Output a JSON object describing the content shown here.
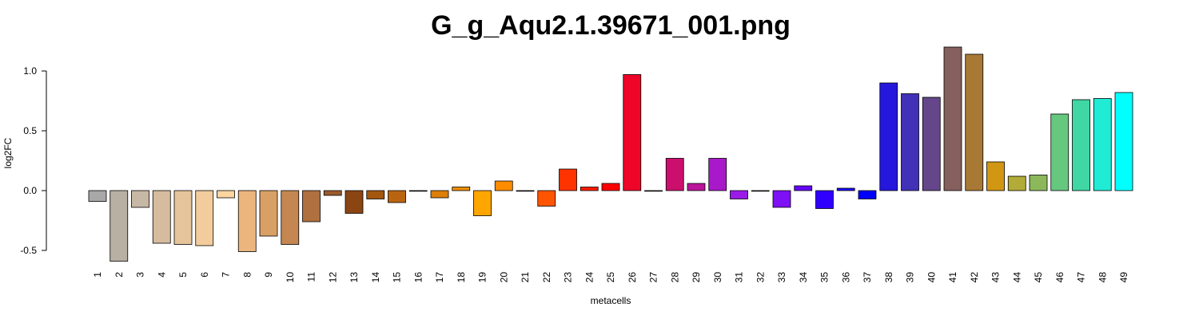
{
  "chart_data": {
    "type": "bar",
    "title": "G_g_Aqu2.1.39671_001.png",
    "xlabel": "metacells",
    "ylabel": "log2FC",
    "ylim": [
      -0.5,
      1.0
    ],
    "yticks": [
      "-0.5",
      "0.0",
      "0.5",
      "1.0"
    ],
    "grid": false,
    "legend": "none",
    "categories": [
      "1",
      "2",
      "3",
      "4",
      "5",
      "6",
      "7",
      "8",
      "9",
      "10",
      "11",
      "12",
      "13",
      "14",
      "15",
      "16",
      "17",
      "18",
      "19",
      "20",
      "21",
      "22",
      "23",
      "24",
      "25",
      "26",
      "27",
      "28",
      "29",
      "30",
      "31",
      "32",
      "33",
      "34",
      "35",
      "36",
      "37",
      "38",
      "39",
      "40",
      "41",
      "42",
      "43",
      "44",
      "45",
      "46",
      "47",
      "48",
      "49"
    ],
    "values": [
      -0.09,
      -0.59,
      -0.14,
      -0.44,
      -0.45,
      -0.46,
      -0.06,
      -0.51,
      -0.38,
      -0.45,
      -0.26,
      -0.04,
      -0.19,
      -0.07,
      -0.1,
      -0.005,
      -0.06,
      0.03,
      -0.21,
      0.08,
      -0.005,
      -0.13,
      0.18,
      0.03,
      0.06,
      0.97,
      -0.005,
      0.27,
      0.06,
      0.27,
      -0.07,
      -0.005,
      -0.14,
      0.04,
      -0.15,
      0.02,
      -0.07,
      0.9,
      0.81,
      0.78,
      1.2,
      1.14,
      0.24,
      0.12,
      0.13,
      0.64,
      0.76,
      0.77,
      0.82
    ],
    "colors": [
      "#a8a8a8",
      "#b8b0a3",
      "#c7b8a5",
      "#d6bc9e",
      "#e6c49b",
      "#f2cc9c",
      "#ffd59f",
      "#ebb57d",
      "#d9a066",
      "#c48752",
      "#b0703f",
      "#9c5b2c",
      "#8b4513",
      "#a35711",
      "#bb6410",
      "#d1700e",
      "#de7f0b",
      "#ed8f08",
      "#ffa500",
      "#ff8c00",
      "#ff7300",
      "#ff5500",
      "#ff3300",
      "#ff1a00",
      "#ff0000",
      "#ee0528",
      "#dc0a46",
      "#cc0f6c",
      "#bb149b",
      "#a819c9",
      "#9a1be8",
      "#8f18f0",
      "#7e10f5",
      "#6506fa",
      "#3000ff",
      "#1a00ff",
      "#0000ff",
      "#2617dd",
      "#4132b8",
      "#65468a",
      "#85605c",
      "#a87934",
      "#d19713",
      "#b2ab37",
      "#8cb85b",
      "#66c77f",
      "#40d7a4",
      "#20ebd4",
      "#00ffff"
    ]
  }
}
